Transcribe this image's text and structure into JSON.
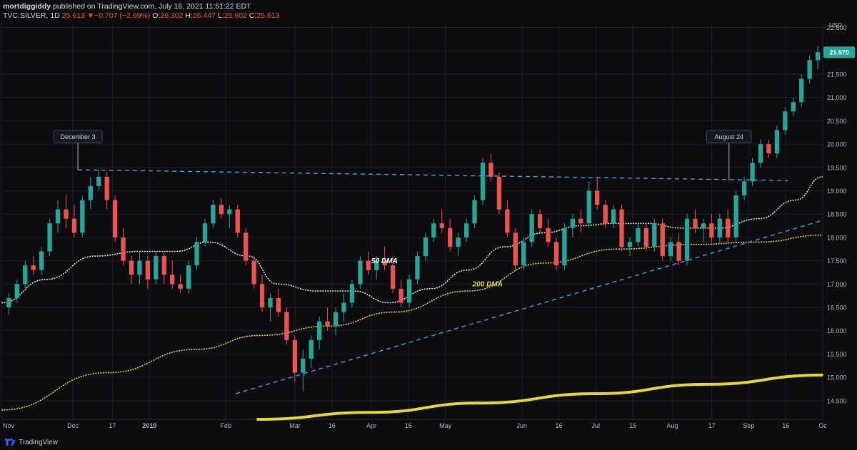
{
  "header": {
    "author": "mortdiggiddy",
    "published_text": "published on TradingView.com, July 16, 2021 11:51:22 EDT",
    "symbol": "TVC:SILVER, 1D",
    "last": "25.613",
    "change": "▼−0.707 (−2.69%)",
    "o_label": "O:",
    "o_val": "26.302",
    "h_label": "H:",
    "h_val": "26.447",
    "l_label": "L:",
    "l_val": "25.602",
    "c_label": "C:",
    "c_val": "25.613"
  },
  "footer": {
    "brand": "TradingView"
  },
  "colors": {
    "bg": "#0c0c0e",
    "grid": "#1c1f26",
    "up": "#26a69a",
    "down": "#ef5350",
    "dma50": "#e6e6e6",
    "dma200": "#e5d73a",
    "trend": "#3ba7e0",
    "price_tag": "#26a69a"
  },
  "chart_data": {
    "type": "line",
    "title": "",
    "currency_label": "USD",
    "price_axis": {
      "min": 14.1,
      "max": 22.6,
      "ticks": [
        "22.500",
        "22.000",
        "21.500",
        "21.000",
        "20.500",
        "20.000",
        "19.500",
        "19.000",
        "18.500",
        "18.000",
        "17.500",
        "17.000",
        "16.500",
        "16.000",
        "15.500",
        "15.000",
        "14.500"
      ],
      "tick_values": [
        22.5,
        22.0,
        21.5,
        21.0,
        20.5,
        20.0,
        19.5,
        19.0,
        18.5,
        18.0,
        17.5,
        17.0,
        16.5,
        16.0,
        15.5,
        15.0,
        14.5
      ],
      "last_price_tag": "21.970",
      "last_price_value": 21.97
    },
    "time_axis": {
      "start": "2009-11-02",
      "end": "2010-10-01",
      "ticks": [
        "Nov",
        "Dec",
        "17",
        "2010",
        "Feb",
        "Mar",
        "16",
        "Apr",
        "16",
        "May",
        "Jun",
        "16",
        "Jul",
        "16",
        "Aug",
        "17",
        "Sep",
        "16",
        "Oc"
      ],
      "tick_dates": [
        "2009-11-02",
        "2009-12-01",
        "2009-12-17",
        "2010-01-01",
        "2010-02-01",
        "2010-03-01",
        "2010-03-16",
        "2010-04-01",
        "2010-04-16",
        "2010-05-01",
        "2010-06-01",
        "2010-06-16",
        "2010-07-01",
        "2010-07-16",
        "2010-08-01",
        "2010-08-17",
        "2010-09-01",
        "2010-09-16",
        "2010-10-01"
      ]
    },
    "series": [
      {
        "name": "50 DMA",
        "color": "#e6e6e6",
        "style": "dotted",
        "dates": [
          "2009-11-02",
          "2009-11-20",
          "2009-12-10",
          "2009-12-28",
          "2010-01-12",
          "2010-01-25",
          "2010-02-10",
          "2010-02-22",
          "2010-03-10",
          "2010-03-25",
          "2010-04-08",
          "2010-04-25",
          "2010-05-10",
          "2010-05-25",
          "2010-06-10",
          "2010-06-25",
          "2010-07-08",
          "2010-07-22",
          "2010-08-05",
          "2010-08-20",
          "2010-09-05",
          "2010-09-20",
          "2010-10-01"
        ],
        "values": [
          16.6,
          17.1,
          17.6,
          17.7,
          17.7,
          17.9,
          17.6,
          17.0,
          16.85,
          16.85,
          16.6,
          16.9,
          17.3,
          17.8,
          18.1,
          18.25,
          18.3,
          18.3,
          18.2,
          18.2,
          18.4,
          18.8,
          19.3
        ]
      },
      {
        "name": "200 DMA",
        "color": "#e5d73a",
        "style": "dotted",
        "dates": [
          "2009-11-02",
          "2009-12-15",
          "2010-01-20",
          "2010-02-15",
          "2010-03-15",
          "2010-04-10",
          "2010-05-10",
          "2010-06-10",
          "2010-07-10",
          "2010-08-10",
          "2010-09-05",
          "2010-10-01"
        ],
        "values": [
          14.3,
          15.1,
          15.6,
          15.9,
          16.1,
          16.4,
          16.85,
          17.45,
          17.75,
          17.85,
          17.9,
          18.05
        ]
      },
      {
        "name": "",
        "color": "#e5d73a",
        "style": "beaded",
        "dates": [
          "2010-02-14",
          "2010-04-01",
          "2010-05-15",
          "2010-07-01",
          "2010-08-15",
          "2010-10-01"
        ],
        "values": [
          14.1,
          14.25,
          14.45,
          14.65,
          14.85,
          15.05
        ]
      }
    ],
    "candles": [
      [
        16.5,
        16.8,
        16.35,
        16.7
      ],
      [
        16.7,
        17.1,
        16.6,
        17.0
      ],
      [
        17.0,
        17.5,
        16.9,
        17.4
      ],
      [
        17.4,
        17.6,
        17.2,
        17.3
      ],
      [
        17.3,
        17.8,
        17.2,
        17.7
      ],
      [
        17.7,
        18.4,
        17.6,
        18.3
      ],
      [
        18.3,
        18.8,
        18.1,
        18.6
      ],
      [
        18.6,
        18.9,
        18.2,
        18.4
      ],
      [
        18.4,
        18.7,
        18.0,
        18.1
      ],
      [
        18.1,
        18.9,
        18.0,
        18.8
      ],
      [
        18.8,
        19.3,
        18.6,
        19.1
      ],
      [
        19.1,
        19.45,
        19.0,
        19.3
      ],
      [
        19.3,
        19.4,
        18.6,
        18.8
      ],
      [
        18.8,
        18.9,
        17.9,
        18.0
      ],
      [
        18.0,
        18.2,
        17.4,
        17.5
      ],
      [
        17.5,
        17.6,
        17.0,
        17.2
      ],
      [
        17.2,
        17.7,
        17.0,
        17.5
      ],
      [
        17.5,
        17.6,
        16.9,
        17.1
      ],
      [
        17.1,
        17.7,
        17.0,
        17.6
      ],
      [
        17.6,
        17.7,
        17.0,
        17.2
      ],
      [
        17.2,
        17.5,
        16.9,
        17.0
      ],
      [
        17.0,
        17.2,
        16.8,
        16.9
      ],
      [
        16.9,
        17.5,
        16.8,
        17.4
      ],
      [
        17.4,
        18.0,
        17.3,
        17.9
      ],
      [
        17.9,
        18.4,
        17.8,
        18.3
      ],
      [
        18.3,
        18.8,
        18.2,
        18.7
      ],
      [
        18.7,
        18.85,
        18.4,
        18.5
      ],
      [
        18.5,
        18.7,
        18.2,
        18.6
      ],
      [
        18.6,
        18.7,
        18.0,
        18.1
      ],
      [
        18.1,
        18.2,
        17.4,
        17.5
      ],
      [
        17.5,
        17.6,
        16.9,
        17.0
      ],
      [
        17.0,
        17.2,
        16.4,
        16.5
      ],
      [
        16.5,
        16.8,
        16.2,
        16.7
      ],
      [
        16.7,
        16.9,
        16.3,
        16.4
      ],
      [
        16.4,
        16.5,
        15.7,
        15.8
      ],
      [
        15.8,
        15.9,
        14.9,
        15.1
      ],
      [
        15.1,
        15.6,
        14.7,
        15.4
      ],
      [
        15.4,
        15.9,
        15.2,
        15.8
      ],
      [
        15.8,
        16.3,
        15.6,
        16.2
      ],
      [
        16.2,
        16.5,
        16.0,
        16.1
      ],
      [
        16.1,
        16.5,
        15.9,
        16.4
      ],
      [
        16.4,
        16.8,
        16.2,
        16.6
      ],
      [
        16.6,
        17.1,
        16.5,
        17.0
      ],
      [
        17.0,
        17.6,
        16.9,
        17.5
      ],
      [
        17.5,
        17.7,
        17.2,
        17.3
      ],
      [
        17.3,
        17.6,
        17.1,
        17.5
      ],
      [
        17.5,
        17.8,
        17.3,
        17.4
      ],
      [
        17.4,
        17.6,
        16.8,
        16.9
      ],
      [
        16.9,
        17.1,
        16.5,
        16.6
      ],
      [
        16.6,
        17.2,
        16.5,
        17.1
      ],
      [
        17.1,
        17.7,
        17.0,
        17.6
      ],
      [
        17.6,
        18.1,
        17.5,
        18.0
      ],
      [
        18.0,
        18.4,
        17.9,
        18.3
      ],
      [
        18.3,
        18.6,
        18.1,
        18.2
      ],
      [
        18.2,
        18.4,
        17.7,
        17.8
      ],
      [
        17.8,
        18.1,
        17.6,
        18.0
      ],
      [
        18.0,
        18.4,
        17.9,
        18.3
      ],
      [
        18.3,
        18.9,
        18.2,
        18.8
      ],
      [
        18.8,
        19.7,
        18.7,
        19.6
      ],
      [
        19.6,
        19.8,
        19.2,
        19.3
      ],
      [
        19.3,
        19.4,
        18.5,
        18.6
      ],
      [
        18.6,
        18.8,
        18.0,
        18.1
      ],
      [
        18.1,
        18.2,
        17.3,
        17.4
      ],
      [
        17.4,
        18.0,
        17.3,
        17.9
      ],
      [
        17.9,
        18.6,
        17.8,
        18.5
      ],
      [
        18.5,
        18.6,
        18.1,
        18.2
      ],
      [
        18.2,
        18.4,
        17.8,
        17.9
      ],
      [
        17.9,
        18.0,
        17.3,
        17.4
      ],
      [
        17.4,
        18.3,
        17.3,
        18.2
      ],
      [
        18.2,
        18.5,
        18.0,
        18.4
      ],
      [
        18.4,
        18.6,
        18.1,
        18.3
      ],
      [
        18.3,
        19.2,
        18.2,
        19.0
      ],
      [
        19.0,
        19.3,
        18.6,
        18.7
      ],
      [
        18.7,
        18.8,
        18.2,
        18.3
      ],
      [
        18.3,
        18.7,
        18.2,
        18.6
      ],
      [
        18.6,
        18.7,
        17.7,
        17.8
      ],
      [
        17.8,
        18.0,
        17.6,
        17.9
      ],
      [
        17.9,
        18.3,
        17.8,
        18.2
      ],
      [
        18.2,
        18.3,
        17.7,
        17.8
      ],
      [
        17.8,
        18.4,
        17.7,
        18.3
      ],
      [
        18.3,
        18.4,
        17.5,
        17.6
      ],
      [
        17.6,
        18.0,
        17.5,
        17.9
      ],
      [
        17.9,
        18.1,
        17.4,
        17.5
      ],
      [
        17.5,
        18.5,
        17.4,
        18.4
      ],
      [
        18.4,
        18.6,
        18.1,
        18.2
      ],
      [
        18.2,
        18.4,
        17.9,
        18.3
      ],
      [
        18.3,
        18.5,
        17.9,
        18.0
      ],
      [
        18.0,
        18.5,
        17.9,
        18.4
      ],
      [
        18.4,
        18.6,
        17.9,
        18.0
      ],
      [
        18.0,
        19.0,
        17.9,
        18.9
      ],
      [
        18.9,
        19.3,
        18.8,
        19.2
      ],
      [
        19.2,
        19.7,
        19.1,
        19.6
      ],
      [
        19.6,
        20.1,
        19.5,
        20.0
      ],
      [
        20.0,
        20.1,
        19.7,
        19.8
      ],
      [
        19.8,
        20.4,
        19.7,
        20.3
      ],
      [
        20.3,
        20.8,
        20.2,
        20.7
      ],
      [
        20.7,
        21.0,
        20.6,
        20.9
      ],
      [
        20.9,
        21.5,
        20.8,
        21.4
      ],
      [
        21.4,
        21.9,
        21.3,
        21.8
      ],
      [
        21.8,
        22.1,
        21.6,
        21.97
      ]
    ],
    "annotations": [
      {
        "label": "December 3",
        "date": "2009-12-03",
        "value": 19.45
      },
      {
        "label": "August 24",
        "date": "2010-08-24",
        "value": 19.22
      }
    ],
    "trendlines": [
      {
        "from": [
          "2009-12-03",
          19.45
        ],
        "to": [
          "2010-09-17",
          19.22
        ],
        "style": "dashed"
      },
      {
        "from": [
          "2010-02-05",
          14.65
        ],
        "to": [
          "2010-09-30",
          18.35
        ],
        "style": "dashed"
      }
    ],
    "text_labels": [
      {
        "text": "50 DMA",
        "date": "2010-04-01",
        "value": 17.45,
        "color": "#ffffff"
      },
      {
        "text": "200 DMA",
        "date": "2010-05-12",
        "value": 16.95,
        "color": "#e5d73a"
      }
    ],
    "grid": true
  }
}
